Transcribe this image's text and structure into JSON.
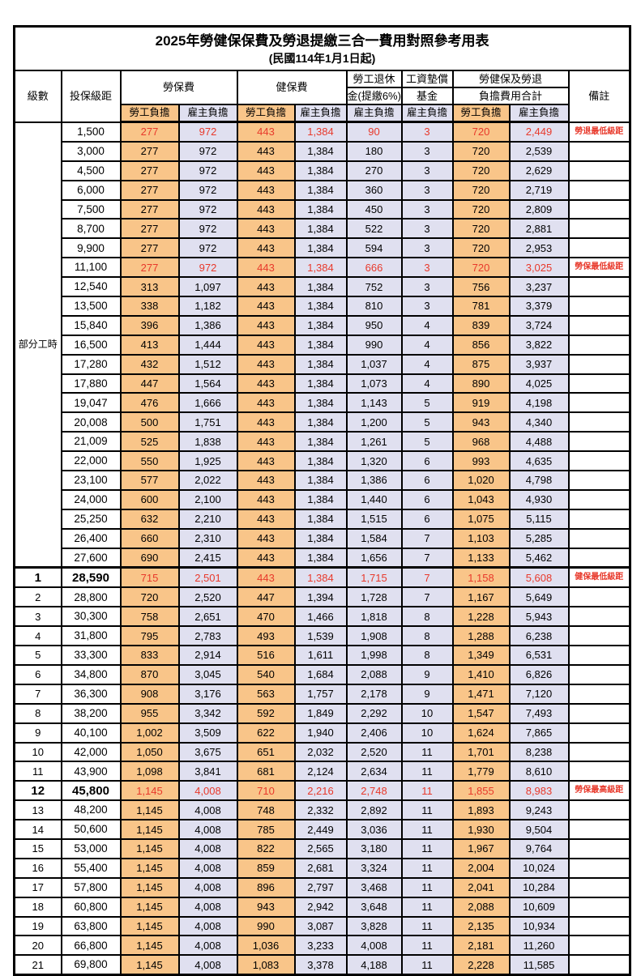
{
  "title": "2025年勞健保保費及勞退提繳三合一費用對照參考用表",
  "subtitle": "(民國114年1月1日起)",
  "colors": {
    "employee_bg": "#F9C589",
    "employer_bg": "#E0E0F0",
    "highlight_red": "#E8392B",
    "border": "#000000"
  },
  "header": {
    "col_level": "級數",
    "col_bracket": "投保級距",
    "grp_labor": "勞保費",
    "grp_health": "健保費",
    "grp_pension_line1": "勞工退休",
    "grp_pension_line2": "金(提繳6%)",
    "grp_fund_line1": "工資墊償",
    "grp_fund_line2": "基金",
    "grp_total_line1": "勞健保及勞退",
    "grp_total_line2": "負擔費用合計",
    "col_remark": "備註",
    "sub_employee": "勞工負擔",
    "sub_employer": "雇主負擔"
  },
  "part_time": {
    "label": "部分工時",
    "span": 23
  },
  "rows": [
    {
      "level": "",
      "bracket": "1,500",
      "v": [
        "277",
        "972",
        "443",
        "1,384",
        "90",
        "3",
        "720",
        "2,449"
      ],
      "remark": "勞退最低級距",
      "red": true
    },
    {
      "level": "",
      "bracket": "3,000",
      "v": [
        "277",
        "972",
        "443",
        "1,384",
        "180",
        "3",
        "720",
        "2,539"
      ],
      "remark": ""
    },
    {
      "level": "",
      "bracket": "4,500",
      "v": [
        "277",
        "972",
        "443",
        "1,384",
        "270",
        "3",
        "720",
        "2,629"
      ],
      "remark": ""
    },
    {
      "level": "",
      "bracket": "6,000",
      "v": [
        "277",
        "972",
        "443",
        "1,384",
        "360",
        "3",
        "720",
        "2,719"
      ],
      "remark": ""
    },
    {
      "level": "",
      "bracket": "7,500",
      "v": [
        "277",
        "972",
        "443",
        "1,384",
        "450",
        "3",
        "720",
        "2,809"
      ],
      "remark": ""
    },
    {
      "level": "",
      "bracket": "8,700",
      "v": [
        "277",
        "972",
        "443",
        "1,384",
        "522",
        "3",
        "720",
        "2,881"
      ],
      "remark": ""
    },
    {
      "level": "",
      "bracket": "9,900",
      "v": [
        "277",
        "972",
        "443",
        "1,384",
        "594",
        "3",
        "720",
        "2,953"
      ],
      "remark": ""
    },
    {
      "level": "",
      "bracket": "11,100",
      "v": [
        "277",
        "972",
        "443",
        "1,384",
        "666",
        "3",
        "720",
        "3,025"
      ],
      "remark": "勞保最低級距",
      "red": true
    },
    {
      "level": "",
      "bracket": "12,540",
      "v": [
        "313",
        "1,097",
        "443",
        "1,384",
        "752",
        "3",
        "756",
        "3,237"
      ],
      "remark": ""
    },
    {
      "level": "",
      "bracket": "13,500",
      "v": [
        "338",
        "1,182",
        "443",
        "1,384",
        "810",
        "3",
        "781",
        "3,379"
      ],
      "remark": ""
    },
    {
      "level": "",
      "bracket": "15,840",
      "v": [
        "396",
        "1,386",
        "443",
        "1,384",
        "950",
        "4",
        "839",
        "3,724"
      ],
      "remark": ""
    },
    {
      "level": "",
      "bracket": "16,500",
      "v": [
        "413",
        "1,444",
        "443",
        "1,384",
        "990",
        "4",
        "856",
        "3,822"
      ],
      "remark": ""
    },
    {
      "level": "",
      "bracket": "17,280",
      "v": [
        "432",
        "1,512",
        "443",
        "1,384",
        "1,037",
        "4",
        "875",
        "3,937"
      ],
      "remark": ""
    },
    {
      "level": "",
      "bracket": "17,880",
      "v": [
        "447",
        "1,564",
        "443",
        "1,384",
        "1,073",
        "4",
        "890",
        "4,025"
      ],
      "remark": ""
    },
    {
      "level": "",
      "bracket": "19,047",
      "v": [
        "476",
        "1,666",
        "443",
        "1,384",
        "1,143",
        "5",
        "919",
        "4,198"
      ],
      "remark": ""
    },
    {
      "level": "",
      "bracket": "20,008",
      "v": [
        "500",
        "1,751",
        "443",
        "1,384",
        "1,200",
        "5",
        "943",
        "4,340"
      ],
      "remark": ""
    },
    {
      "level": "",
      "bracket": "21,009",
      "v": [
        "525",
        "1,838",
        "443",
        "1,384",
        "1,261",
        "5",
        "968",
        "4,488"
      ],
      "remark": ""
    },
    {
      "level": "",
      "bracket": "22,000",
      "v": [
        "550",
        "1,925",
        "443",
        "1,384",
        "1,320",
        "6",
        "993",
        "4,635"
      ],
      "remark": ""
    },
    {
      "level": "",
      "bracket": "23,100",
      "v": [
        "577",
        "2,022",
        "443",
        "1,384",
        "1,386",
        "6",
        "1,020",
        "4,798"
      ],
      "remark": ""
    },
    {
      "level": "",
      "bracket": "24,000",
      "v": [
        "600",
        "2,100",
        "443",
        "1,384",
        "1,440",
        "6",
        "1,043",
        "4,930"
      ],
      "remark": ""
    },
    {
      "level": "",
      "bracket": "25,250",
      "v": [
        "632",
        "2,210",
        "443",
        "1,384",
        "1,515",
        "6",
        "1,075",
        "5,115"
      ],
      "remark": ""
    },
    {
      "level": "",
      "bracket": "26,400",
      "v": [
        "660",
        "2,310",
        "443",
        "1,384",
        "1,584",
        "7",
        "1,103",
        "5,285"
      ],
      "remark": ""
    },
    {
      "level": "",
      "bracket": "27,600",
      "v": [
        "690",
        "2,415",
        "443",
        "1,384",
        "1,656",
        "7",
        "1,133",
        "5,462"
      ],
      "remark": ""
    },
    {
      "level": "1",
      "bracket": "28,590",
      "v": [
        "715",
        "2,501",
        "443",
        "1,384",
        "1,715",
        "7",
        "1,158",
        "5,608"
      ],
      "remark": "健保最低級距",
      "red": true,
      "big": true,
      "sep": true
    },
    {
      "level": "2",
      "bracket": "28,800",
      "v": [
        "720",
        "2,520",
        "447",
        "1,394",
        "1,728",
        "7",
        "1,167",
        "5,649"
      ],
      "remark": ""
    },
    {
      "level": "3",
      "bracket": "30,300",
      "v": [
        "758",
        "2,651",
        "470",
        "1,466",
        "1,818",
        "8",
        "1,228",
        "5,943"
      ],
      "remark": ""
    },
    {
      "level": "4",
      "bracket": "31,800",
      "v": [
        "795",
        "2,783",
        "493",
        "1,539",
        "1,908",
        "8",
        "1,288",
        "6,238"
      ],
      "remark": ""
    },
    {
      "level": "5",
      "bracket": "33,300",
      "v": [
        "833",
        "2,914",
        "516",
        "1,611",
        "1,998",
        "8",
        "1,349",
        "6,531"
      ],
      "remark": ""
    },
    {
      "level": "6",
      "bracket": "34,800",
      "v": [
        "870",
        "3,045",
        "540",
        "1,684",
        "2,088",
        "9",
        "1,410",
        "6,826"
      ],
      "remark": ""
    },
    {
      "level": "7",
      "bracket": "36,300",
      "v": [
        "908",
        "3,176",
        "563",
        "1,757",
        "2,178",
        "9",
        "1,471",
        "7,120"
      ],
      "remark": ""
    },
    {
      "level": "8",
      "bracket": "38,200",
      "v": [
        "955",
        "3,342",
        "592",
        "1,849",
        "2,292",
        "10",
        "1,547",
        "7,493"
      ],
      "remark": ""
    },
    {
      "level": "9",
      "bracket": "40,100",
      "v": [
        "1,002",
        "3,509",
        "622",
        "1,940",
        "2,406",
        "10",
        "1,624",
        "7,865"
      ],
      "remark": ""
    },
    {
      "level": "10",
      "bracket": "42,000",
      "v": [
        "1,050",
        "3,675",
        "651",
        "2,032",
        "2,520",
        "11",
        "1,701",
        "8,238"
      ],
      "remark": ""
    },
    {
      "level": "11",
      "bracket": "43,900",
      "v": [
        "1,098",
        "3,841",
        "681",
        "2,124",
        "2,634",
        "11",
        "1,779",
        "8,610"
      ],
      "remark": ""
    },
    {
      "level": "12",
      "bracket": "45,800",
      "v": [
        "1,145",
        "4,008",
        "710",
        "2,216",
        "2,748",
        "11",
        "1,855",
        "8,983"
      ],
      "remark": "勞保最高級距",
      "red": true,
      "big": true
    },
    {
      "level": "13",
      "bracket": "48,200",
      "v": [
        "1,145",
        "4,008",
        "748",
        "2,332",
        "2,892",
        "11",
        "1,893",
        "9,243"
      ],
      "remark": ""
    },
    {
      "level": "14",
      "bracket": "50,600",
      "v": [
        "1,145",
        "4,008",
        "785",
        "2,449",
        "3,036",
        "11",
        "1,930",
        "9,504"
      ],
      "remark": ""
    },
    {
      "level": "15",
      "bracket": "53,000",
      "v": [
        "1,145",
        "4,008",
        "822",
        "2,565",
        "3,180",
        "11",
        "1,967",
        "9,764"
      ],
      "remark": ""
    },
    {
      "level": "16",
      "bracket": "55,400",
      "v": [
        "1,145",
        "4,008",
        "859",
        "2,681",
        "3,324",
        "11",
        "2,004",
        "10,024"
      ],
      "remark": ""
    },
    {
      "level": "17",
      "bracket": "57,800",
      "v": [
        "1,145",
        "4,008",
        "896",
        "2,797",
        "3,468",
        "11",
        "2,041",
        "10,284"
      ],
      "remark": ""
    },
    {
      "level": "18",
      "bracket": "60,800",
      "v": [
        "1,145",
        "4,008",
        "943",
        "2,942",
        "3,648",
        "11",
        "2,088",
        "10,609"
      ],
      "remark": ""
    },
    {
      "level": "19",
      "bracket": "63,800",
      "v": [
        "1,145",
        "4,008",
        "990",
        "3,087",
        "3,828",
        "11",
        "2,135",
        "10,934"
      ],
      "remark": ""
    },
    {
      "level": "20",
      "bracket": "66,800",
      "v": [
        "1,145",
        "4,008",
        "1,036",
        "3,233",
        "4,008",
        "11",
        "2,181",
        "11,260"
      ],
      "remark": ""
    },
    {
      "level": "21",
      "bracket": "69,800",
      "v": [
        "1,145",
        "4,008",
        "1,083",
        "3,378",
        "4,188",
        "11",
        "2,228",
        "11,585"
      ],
      "remark": ""
    }
  ]
}
